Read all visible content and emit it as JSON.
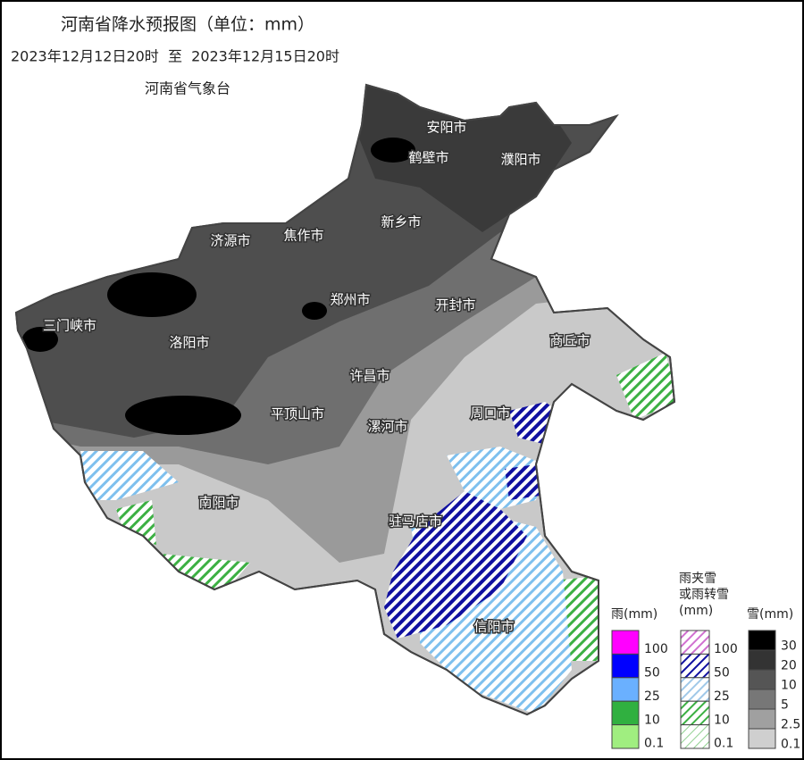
{
  "header": {
    "title": "河南省降水预报图（单位：mm）",
    "period": "2023年12月12日20时  至  2023年12月15日20时",
    "issuer": "河南省气象台"
  },
  "cities": [
    {
      "label": "安阳市"
    },
    {
      "label": "鹤壁市"
    },
    {
      "label": "濮阳市"
    },
    {
      "label": "新乡市"
    },
    {
      "label": "济源市"
    },
    {
      "label": "焦作市"
    },
    {
      "label": "郑州市"
    },
    {
      "label": "开封市"
    },
    {
      "label": "三门峡市"
    },
    {
      "label": "洛阳市"
    },
    {
      "label": "商丘市"
    },
    {
      "label": "许昌市"
    },
    {
      "label": "平顶山市"
    },
    {
      "label": "漯河市"
    },
    {
      "label": "周口市"
    },
    {
      "label": "南阳市"
    },
    {
      "label": "驻马店市"
    },
    {
      "label": "信阳市"
    }
  ],
  "legend": {
    "rain": {
      "title": [
        "雨(mm)"
      ],
      "levels": [
        100,
        50,
        25,
        10,
        0.1
      ]
    },
    "mixed": {
      "title": [
        "雨夹雪",
        "或雨转雪",
        "(mm)"
      ],
      "levels": [
        100,
        50,
        25,
        10,
        0.1
      ]
    },
    "snow": {
      "title": [
        "雪(mm)"
      ],
      "levels": [
        30,
        20,
        10,
        5,
        2.5,
        0.1
      ]
    }
  }
}
